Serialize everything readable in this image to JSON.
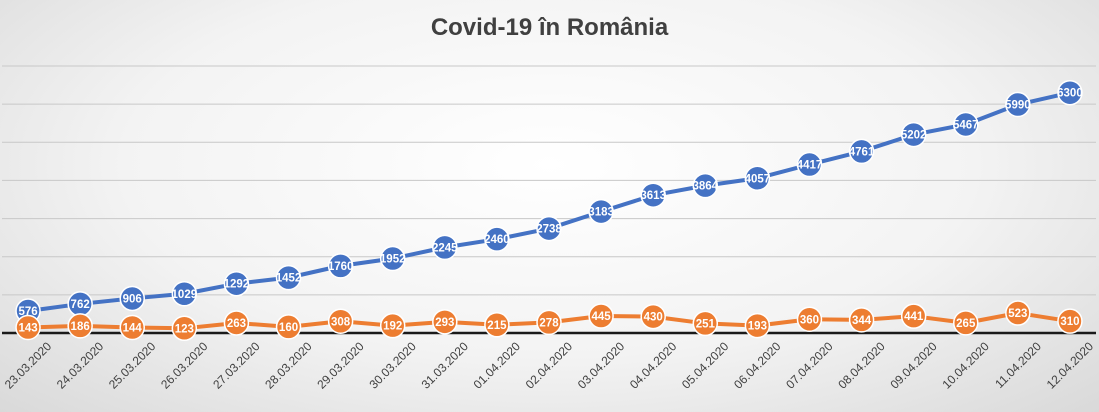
{
  "chart_data": {
    "type": "line",
    "title": "Covid-19 în România",
    "categories": [
      "23.03.2020",
      "24.03.2020",
      "25.03.2020",
      "26.03.2020",
      "27.03.2020",
      "28.03.2020",
      "29.03.2020",
      "30.03.2020",
      "31.03.2020",
      "01.04.2020",
      "02.04.2020",
      "03.04.2020",
      "04.04.2020",
      "05.04.2020",
      "06.04.2020",
      "07.04.2020",
      "08.04.2020",
      "09.04.2020",
      "10.04.2020",
      "11.04.2020",
      "12.04.2020"
    ],
    "series": [
      {
        "color": "#4472c4",
        "values": [
          576,
          762,
          906,
          1029,
          1292,
          1452,
          1760,
          1952,
          2245,
          2460,
          2738,
          3183,
          3613,
          3864,
          4057,
          4417,
          4761,
          5202,
          5467,
          5990,
          6300
        ]
      },
      {
        "color": "#ed7d31",
        "values": [
          143,
          186,
          144,
          123,
          263,
          160,
          308,
          192,
          293,
          215,
          278,
          445,
          430,
          251,
          193,
          360,
          344,
          441,
          265,
          523,
          310
        ]
      }
    ],
    "xlabel": "",
    "ylabel": "",
    "ylim": [
      0,
      7000
    ],
    "grid": true,
    "legend": "none"
  }
}
